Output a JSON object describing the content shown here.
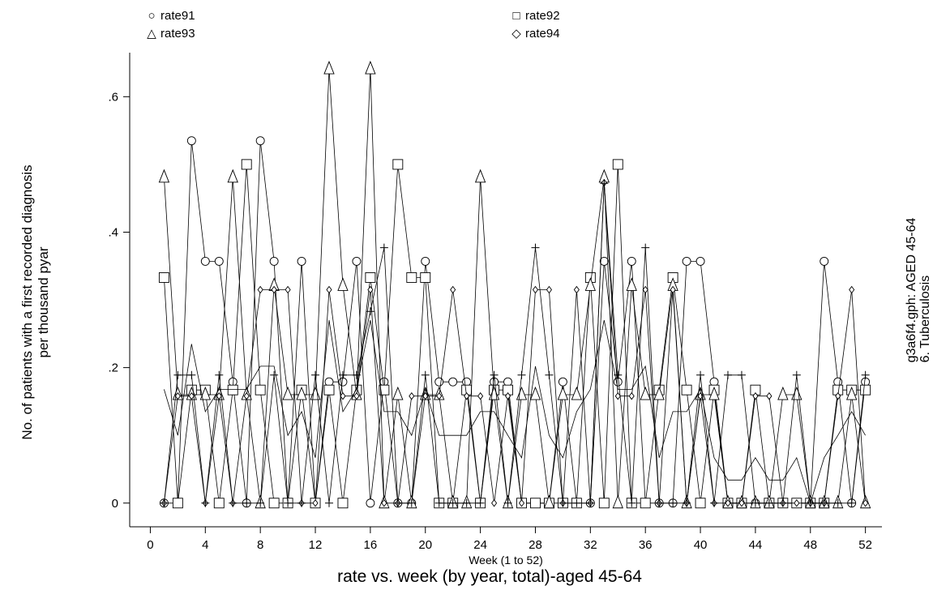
{
  "chart_data": {
    "type": "line",
    "title": "rate vs. week (by year, total)-aged 45-64",
    "xlabel": "Week (1 to 52)",
    "ylabel_lines": [
      "No. of patients with a first recorded diagnosis",
      "per thousand pyar"
    ],
    "side_note_lines": [
      "g3a6f4.gph: AGED 45-64",
      "6.  Tuberculosis"
    ],
    "xlim": [
      -1.5,
      53.2
    ],
    "ylim": [
      -0.035,
      0.665
    ],
    "x_ticks": [
      0,
      4,
      8,
      12,
      16,
      20,
      24,
      28,
      32,
      36,
      40,
      44,
      48,
      52
    ],
    "y_ticks": [
      {
        "value": 0,
        "label": "0"
      },
      {
        "value": 0.2,
        "label": ".2"
      },
      {
        "value": 0.4,
        "label": ".4"
      },
      {
        "value": 0.6,
        "label": ".6"
      }
    ],
    "grid": false,
    "legend_position": "top",
    "x": [
      1,
      2,
      3,
      4,
      5,
      6,
      7,
      8,
      9,
      10,
      11,
      12,
      13,
      14,
      15,
      16,
      17,
      18,
      19,
      20,
      21,
      22,
      23,
      24,
      25,
      26,
      27,
      28,
      29,
      30,
      31,
      32,
      33,
      34,
      35,
      36,
      37,
      38,
      39,
      40,
      41,
      42,
      43,
      44,
      45,
      46,
      47,
      48,
      49,
      50,
      51,
      52
    ],
    "series": [
      {
        "name": "rate91",
        "marker": "circle",
        "values": [
          0,
          0,
          0.535,
          0.357,
          0.357,
          0.179,
          0,
          0.535,
          0.357,
          0,
          0.357,
          0,
          0.179,
          0.179,
          0.357,
          0,
          0.179,
          0,
          0,
          0.357,
          0.179,
          0.179,
          0.179,
          0,
          0.179,
          0.179,
          0,
          0,
          0,
          0.179,
          0,
          0,
          0.357,
          0.179,
          0.357,
          0,
          0,
          0,
          0.357,
          0.357,
          0.179,
          0,
          0,
          0,
          0,
          0,
          0,
          0,
          0.357,
          0.179,
          0,
          0.179
        ]
      },
      {
        "name": "rate92",
        "marker": "square",
        "values": [
          0.333,
          0,
          0.167,
          0.167,
          0,
          0.167,
          0.5,
          0.167,
          0,
          0,
          0.167,
          0,
          0.167,
          0,
          0.167,
          0.333,
          0.167,
          0.5,
          0.333,
          0.333,
          0,
          0,
          0.167,
          0,
          0.167,
          0.167,
          0,
          0,
          0,
          0,
          0,
          0.333,
          0,
          0.5,
          0,
          0,
          0.167,
          0.333,
          0.167,
          0,
          0.167,
          0,
          0,
          0.167,
          0,
          0,
          0,
          0,
          0,
          0.167,
          0.167,
          0.167
        ]
      },
      {
        "name": "rate93",
        "marker": "triangle",
        "values": [
          0.481,
          0.16,
          0.16,
          0.16,
          0.16,
          0.481,
          0.16,
          0,
          0.321,
          0.16,
          0.16,
          0.16,
          0.641,
          0.321,
          0.16,
          0.641,
          0,
          0.16,
          0,
          0.16,
          0.16,
          0,
          0,
          0.481,
          0.16,
          0,
          0.16,
          0.16,
          0,
          0.16,
          0.16,
          0.321,
          0.481,
          0,
          0.321,
          0.16,
          0.16,
          0.321,
          0,
          0.16,
          0.16,
          0,
          0,
          0,
          0,
          0.16,
          0.16,
          0,
          0,
          0,
          0.16,
          0
        ]
      },
      {
        "name": "rate94",
        "marker": "diamond",
        "values": [
          0,
          0.158,
          0.158,
          0,
          0.158,
          0,
          0.158,
          0.315,
          0.315,
          0.315,
          0,
          0,
          0.315,
          0.158,
          0.158,
          0.315,
          0,
          0,
          0.158,
          0.158,
          0.158,
          0.315,
          0.158,
          0.158,
          0,
          0.158,
          0,
          0.315,
          0.315,
          0,
          0.315,
          0,
          0.473,
          0.158,
          0.158,
          0.315,
          0,
          0.315,
          0,
          0.158,
          0,
          0,
          0,
          0.158,
          0.158,
          0,
          0,
          0,
          0,
          0.158,
          0.315,
          0
        ]
      },
      {
        "name": "",
        "marker": "plus",
        "values": [
          0,
          0.189,
          0.189,
          0,
          0.189,
          0,
          0,
          0,
          0.189,
          0,
          0,
          0.189,
          0,
          0.189,
          0.189,
          0.283,
          0.377,
          0,
          0,
          0.189,
          0,
          0,
          0,
          0,
          0.189,
          0,
          0.189,
          0.377,
          0.189,
          0,
          0,
          0,
          0.472,
          0.189,
          0,
          0.377,
          0,
          0,
          0,
          0.189,
          0,
          0.189,
          0.189,
          0,
          0,
          0,
          0.189,
          0,
          0,
          0,
          0,
          0.189
        ]
      },
      {
        "name": "",
        "marker": "none",
        "values": [
          0.168,
          0.1,
          0.235,
          0.135,
          0.168,
          0.168,
          0.168,
          0.202,
          0.202,
          0.1,
          0.135,
          0.067,
          0.27,
          0.135,
          0.168,
          0.27,
          0.135,
          0.135,
          0.1,
          0.168,
          0.1,
          0.1,
          0.1,
          0.135,
          0.135,
          0.1,
          0.067,
          0.202,
          0.1,
          0.067,
          0.135,
          0.168,
          0.27,
          0.168,
          0.168,
          0.202,
          0.067,
          0.135,
          0.135,
          0.168,
          0.067,
          0.034,
          0.034,
          0.067,
          0.034,
          0.034,
          0.067,
          0,
          0.067,
          0.1,
          0.135,
          0.1
        ]
      }
    ]
  }
}
